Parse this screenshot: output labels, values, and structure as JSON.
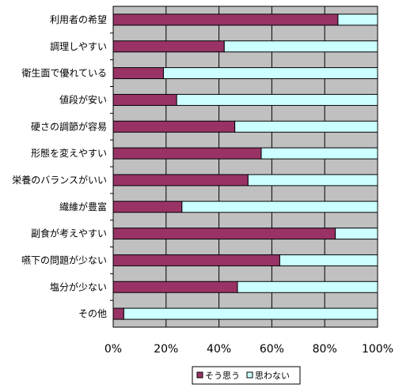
{
  "chart_data": {
    "type": "bar",
    "orientation": "horizontal",
    "stacked": true,
    "percent_stacked": true,
    "categories": [
      "利用者の希望",
      "調理しやすい",
      "衛生面で優れている",
      "値段が安い",
      "硬さの調節が容易",
      "形態を変えやすい",
      "栄養のバランスがいい",
      "繊維が豊富",
      "副食が考えやすい",
      "嚥下の問題が少ない",
      "塩分が少ない",
      "その他"
    ],
    "series": [
      {
        "name": "そう思う",
        "color": "#993366",
        "values": [
          85,
          42,
          19,
          24,
          46,
          56,
          51,
          26,
          84,
          63,
          47,
          4
        ]
      },
      {
        "name": "思わない",
        "color": "#ccffff",
        "values": [
          15,
          58,
          81,
          76,
          54,
          44,
          49,
          74,
          16,
          37,
          53,
          96
        ]
      }
    ],
    "x_ticks": [
      "0%",
      "20%",
      "40%",
      "60%",
      "80%",
      "100%"
    ],
    "xlim": [
      0,
      100
    ],
    "plot_background": "#c0c0c0",
    "grid": true,
    "legend_position": "bottom"
  }
}
